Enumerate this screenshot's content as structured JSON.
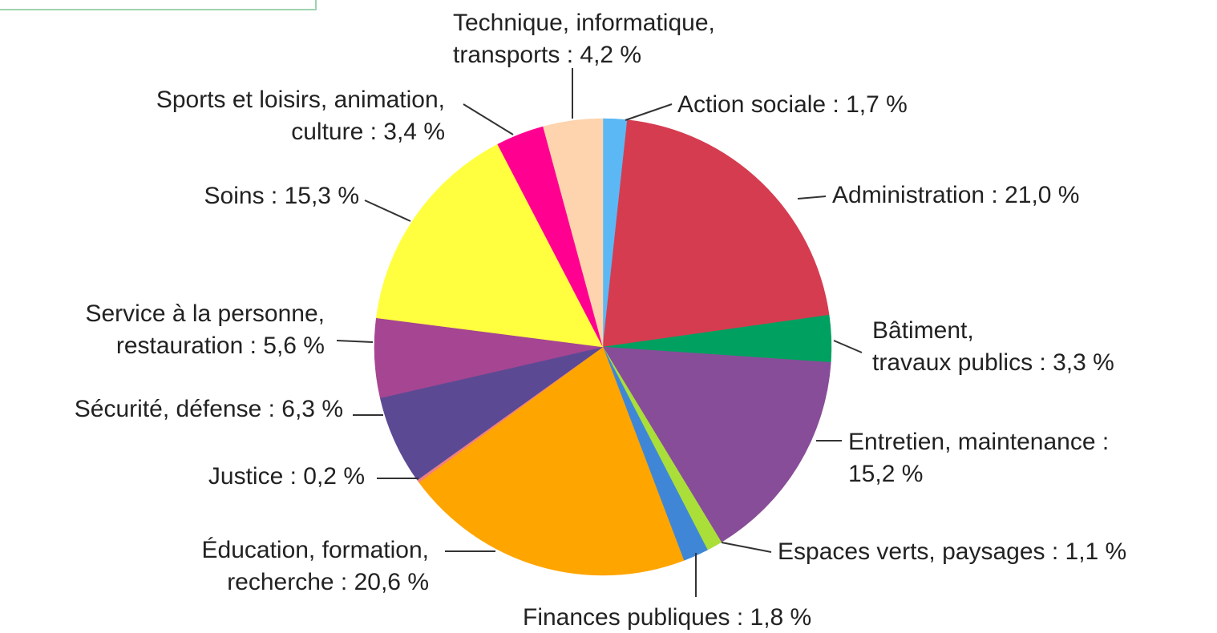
{
  "chart_data": {
    "type": "pie",
    "categories": [
      "Action sociale : 1,7 %",
      "Administration : 21,0 %",
      "Bâtiment,\ntravaux publics : 3,3 %",
      "Entretien, maintenance :\n15,2 %",
      "Espaces verts, paysages : 1,1 %",
      "Finances publiques : 1,8 %",
      "Éducation, formation,\nrecherche : 20,6 %",
      "Justice  : 0,2 %",
      "Sécurité, défense : 6,3 %",
      "Service à la personne,\nrestauration : 5,6 %",
      "Soins : 15,3 %",
      "Sports et loisirs, animation,\nculture : 3,4 %",
      "Technique, informatique,\ntransports : 4,2 %"
    ],
    "values": [
      1.7,
      21.0,
      3.3,
      15.2,
      1.1,
      1.8,
      20.6,
      0.2,
      6.3,
      5.6,
      15.3,
      3.4,
      4.2
    ],
    "colors": [
      "#5bb8f5",
      "#d63c50",
      "#00a060",
      "#884d98",
      "#aadf3a",
      "#3f87d6",
      "#ffa500",
      "#f08080",
      "#5b4a93",
      "#a64592",
      "#ffff40",
      "#ff0090",
      "#fdd4ad"
    ]
  }
}
